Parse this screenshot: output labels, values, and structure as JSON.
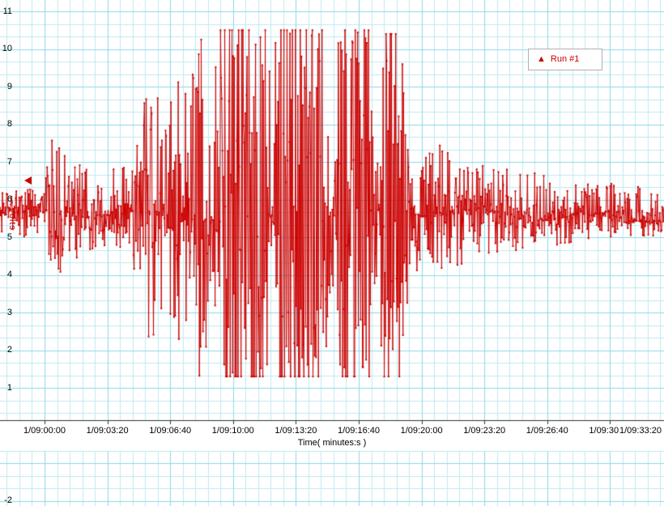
{
  "chart_data": {
    "type": "line",
    "title": "",
    "xlabel": "Time( minutes:s )",
    "ylabel": "Volts",
    "legend_label": "Run #1",
    "legend_position": "top-right",
    "series_color": "#cc0000",
    "marker": "triangle",
    "grid": "on",
    "x_tick_labels": [
      "1/09:00:00",
      "1/09:03:20",
      "1/09:06:40",
      "1/09:10:00",
      "1/09:13:20",
      "1/09:16:40",
      "1/09:20:00",
      "1/09:23:20",
      "1/09:26:40",
      "1/09:30:00",
      "1/09:33:20"
    ],
    "y_tick_values": [
      11,
      10,
      9,
      8,
      7,
      6,
      5,
      4,
      3,
      2,
      1,
      -2
    ],
    "ylim": [
      -2,
      11
    ],
    "baseline": 5.6,
    "clip_hi": 10.5,
    "clip_lo": 1.3,
    "axis_cursor_value": 6.5,
    "samples": 1100,
    "seed": 20,
    "envelope": [
      [
        0.0,
        5.0,
        6.2
      ],
      [
        0.06,
        5.0,
        6.3
      ],
      [
        0.08,
        3.6,
        8.0
      ],
      [
        0.095,
        4.2,
        7.4
      ],
      [
        0.12,
        4.4,
        7.2
      ],
      [
        0.16,
        4.7,
        6.7
      ],
      [
        0.2,
        4.3,
        7.2
      ],
      [
        0.225,
        2.2,
        9.2
      ],
      [
        0.245,
        2.8,
        8.6
      ],
      [
        0.265,
        2.0,
        9.3
      ],
      [
        0.285,
        2.4,
        8.8
      ],
      [
        0.3,
        1.3,
        10.5
      ],
      [
        0.318,
        2.6,
        9.0
      ],
      [
        0.332,
        1.3,
        10.5
      ],
      [
        0.4,
        1.3,
        10.5
      ],
      [
        0.408,
        2.2,
        9.4
      ],
      [
        0.418,
        1.3,
        10.5
      ],
      [
        0.487,
        1.3,
        10.5
      ],
      [
        0.497,
        3.0,
        8.4
      ],
      [
        0.512,
        1.3,
        10.5
      ],
      [
        0.556,
        1.3,
        10.5
      ],
      [
        0.565,
        3.6,
        7.9
      ],
      [
        0.578,
        1.3,
        10.4
      ],
      [
        0.606,
        1.3,
        10.4
      ],
      [
        0.62,
        3.3,
        7.8
      ],
      [
        0.65,
        3.9,
        7.6
      ],
      [
        0.7,
        4.3,
        7.1
      ],
      [
        0.78,
        4.6,
        6.8
      ],
      [
        0.85,
        4.8,
        6.6
      ],
      [
        0.93,
        5.0,
        6.4
      ],
      [
        1.0,
        5.05,
        6.3
      ]
    ]
  }
}
